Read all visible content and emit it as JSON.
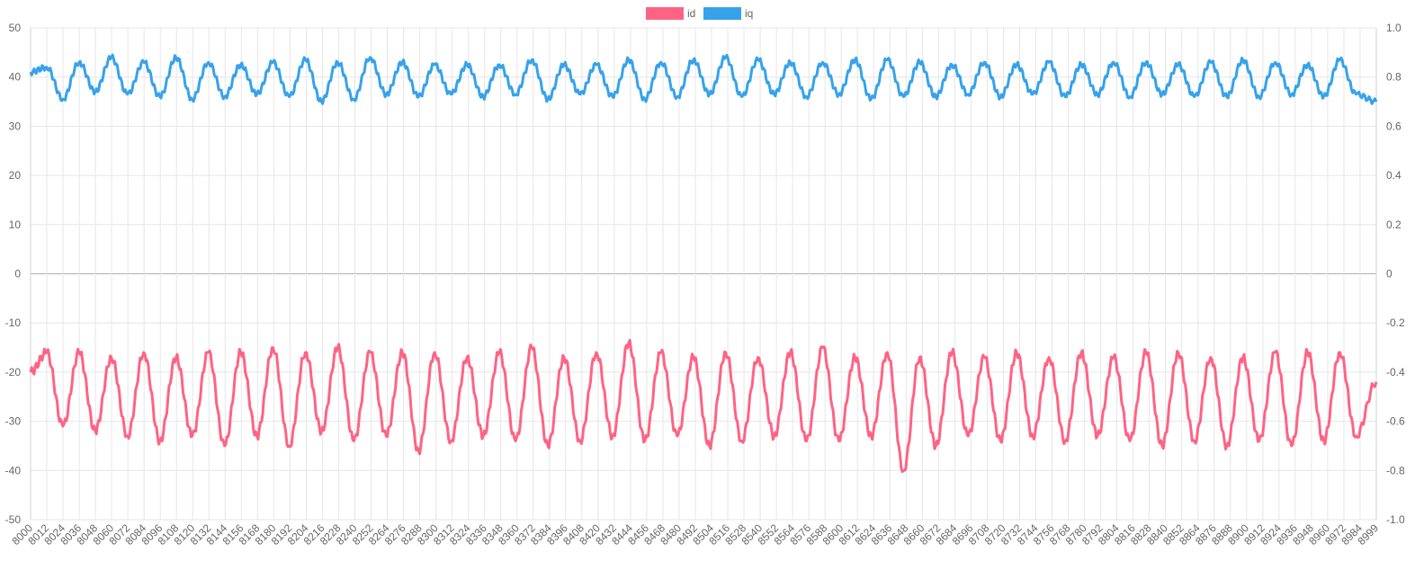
{
  "chart_data": {
    "type": "line",
    "title": "",
    "xlabel": "",
    "ylabel": "",
    "x_range": [
      8000,
      8999
    ],
    "ylim_left": [
      -50,
      50
    ],
    "ylim_right": [
      -1.0,
      1.0
    ],
    "left_ticks": [
      "50",
      "40",
      "30",
      "20",
      "10",
      "0",
      "-10",
      "-20",
      "-30",
      "-40",
      "-50"
    ],
    "right_ticks": [
      "1.0",
      "0.8",
      "0.6",
      "0.4",
      "0.2",
      "0",
      "-0.2",
      "-0.4",
      "-0.6",
      "-0.8",
      "-1.0"
    ],
    "x_tick_labels": [
      "8000",
      "8012",
      "8024",
      "8036",
      "8048",
      "8060",
      "8072",
      "8084",
      "8096",
      "8108",
      "8120",
      "8132",
      "8144",
      "8156",
      "8168",
      "8180",
      "8192",
      "8204",
      "8216",
      "8228",
      "8240",
      "8252",
      "8264",
      "8276",
      "8288",
      "8300",
      "8312",
      "8324",
      "8336",
      "8348",
      "8360",
      "8372",
      "8384",
      "8396",
      "8408",
      "8420",
      "8432",
      "8444",
      "8456",
      "8468",
      "8480",
      "8492",
      "8504",
      "8516",
      "8528",
      "8540",
      "8552",
      "8564",
      "8576",
      "8588",
      "8600",
      "8612",
      "8624",
      "8636",
      "8648",
      "8660",
      "8672",
      "8684",
      "8696",
      "8708",
      "8720",
      "8732",
      "8744",
      "8756",
      "8768",
      "8780",
      "8792",
      "8804",
      "8816",
      "8828",
      "8840",
      "8852",
      "8864",
      "8876",
      "8888",
      "8900",
      "8912",
      "8924",
      "8936",
      "8948",
      "8960",
      "8972",
      "8984",
      "8999"
    ],
    "grid": true,
    "legend_position": "top-center",
    "series": [
      {
        "name": "id",
        "color": "#ff6384",
        "axis": "left",
        "x": [
          8000,
          8012,
          8024,
          8036,
          8048,
          8060,
          8072,
          8084,
          8096,
          8108,
          8120,
          8132,
          8144,
          8156,
          8168,
          8180,
          8192,
          8204,
          8216,
          8228,
          8240,
          8252,
          8264,
          8276,
          8288,
          8300,
          8312,
          8324,
          8336,
          8348,
          8360,
          8372,
          8384,
          8396,
          8408,
          8420,
          8432,
          8444,
          8456,
          8468,
          8480,
          8492,
          8504,
          8516,
          8528,
          8540,
          8552,
          8564,
          8576,
          8588,
          8600,
          8612,
          8624,
          8636,
          8648,
          8660,
          8672,
          8684,
          8696,
          8708,
          8720,
          8732,
          8744,
          8756,
          8768,
          8780,
          8792,
          8804,
          8816,
          8828,
          8840,
          8852,
          8864,
          8876,
          8888,
          8900,
          8912,
          8924,
          8936,
          8948,
          8960,
          8972,
          8984,
          8999
        ],
        "values": [
          -20,
          -16,
          -31,
          -16,
          -32,
          -17,
          -33,
          -16,
          -34,
          -17,
          -33,
          -16,
          -35,
          -16,
          -33,
          -15,
          -35,
          -16,
          -32,
          -15,
          -34,
          -16,
          -33,
          -16,
          -36,
          -16,
          -34,
          -17,
          -33,
          -16,
          -34,
          -15,
          -35,
          -17,
          -34,
          -16,
          -33,
          -14,
          -34,
          -16,
          -33,
          -17,
          -35,
          -16,
          -34,
          -17,
          -33,
          -16,
          -34,
          -15,
          -34,
          -17,
          -33,
          -16,
          -40,
          -17,
          -35,
          -16,
          -33,
          -17,
          -34,
          -16,
          -33,
          -17,
          -34,
          -16,
          -33,
          -17,
          -34,
          -16,
          -35,
          -16,
          -34,
          -17,
          -35,
          -17,
          -34,
          -16,
          -35,
          -16,
          -34,
          -16,
          -33,
          -22
        ]
      },
      {
        "name": "iq",
        "color": "#36a2eb",
        "axis": "right",
        "x": [
          8000,
          8012,
          8024,
          8036,
          8048,
          8060,
          8072,
          8084,
          8096,
          8108,
          8120,
          8132,
          8144,
          8156,
          8168,
          8180,
          8192,
          8204,
          8216,
          8228,
          8240,
          8252,
          8264,
          8276,
          8288,
          8300,
          8312,
          8324,
          8336,
          8348,
          8360,
          8372,
          8384,
          8396,
          8408,
          8420,
          8432,
          8444,
          8456,
          8468,
          8480,
          8492,
          8504,
          8516,
          8528,
          8540,
          8552,
          8564,
          8576,
          8588,
          8600,
          8612,
          8624,
          8636,
          8648,
          8660,
          8672,
          8684,
          8696,
          8708,
          8720,
          8732,
          8744,
          8756,
          8768,
          8780,
          8792,
          8804,
          8816,
          8828,
          8840,
          8852,
          8864,
          8876,
          8888,
          8900,
          8912,
          8924,
          8936,
          8948,
          8960,
          8972,
          8984,
          8999
        ],
        "values": [
          0.82,
          0.84,
          0.71,
          0.86,
          0.74,
          0.88,
          0.73,
          0.86,
          0.72,
          0.88,
          0.71,
          0.86,
          0.72,
          0.85,
          0.73,
          0.86,
          0.72,
          0.87,
          0.7,
          0.86,
          0.71,
          0.88,
          0.73,
          0.86,
          0.72,
          0.85,
          0.73,
          0.85,
          0.72,
          0.85,
          0.73,
          0.87,
          0.71,
          0.85,
          0.73,
          0.85,
          0.72,
          0.87,
          0.71,
          0.86,
          0.72,
          0.87,
          0.73,
          0.88,
          0.72,
          0.87,
          0.73,
          0.86,
          0.72,
          0.86,
          0.73,
          0.87,
          0.71,
          0.87,
          0.72,
          0.86,
          0.72,
          0.85,
          0.73,
          0.86,
          0.72,
          0.85,
          0.73,
          0.86,
          0.72,
          0.85,
          0.73,
          0.86,
          0.72,
          0.86,
          0.73,
          0.85,
          0.72,
          0.86,
          0.72,
          0.87,
          0.72,
          0.86,
          0.73,
          0.85,
          0.72,
          0.87,
          0.73,
          0.7
        ]
      }
    ]
  }
}
